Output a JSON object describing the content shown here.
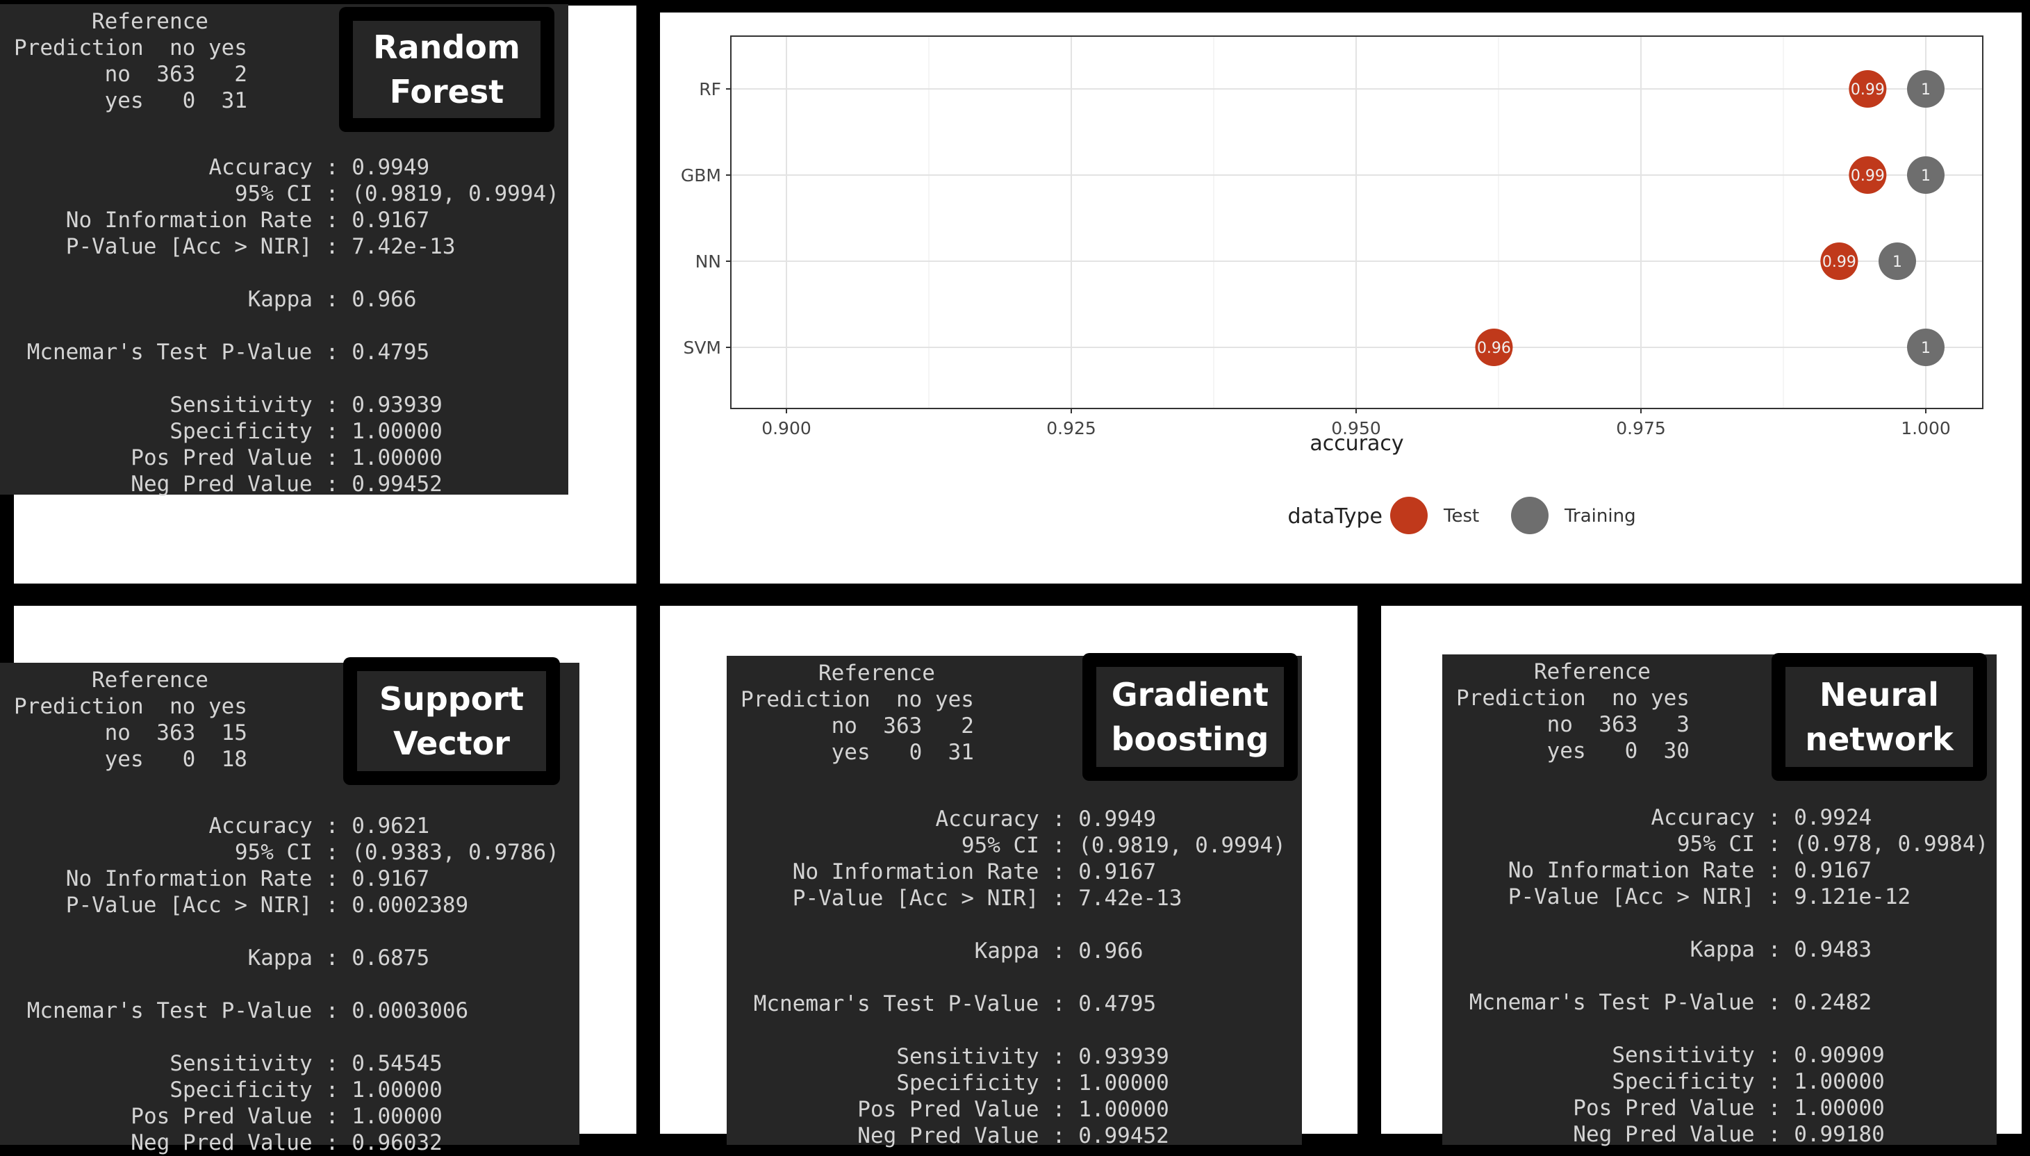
{
  "panels": {
    "rf": {
      "label": "Random\nForest",
      "lines": [
        {
          "l": "      Reference"
        },
        {
          "l": "Prediction  no yes"
        },
        {
          "l": "       no  363   2"
        },
        {
          "l": "       yes   0  31"
        },
        {
          "l": ""
        },
        {
          "l": "Accuracy",
          "v": "0.9949"
        },
        {
          "l": "95% CI",
          "v": "(0.9819, 0.9994)"
        },
        {
          "l": "No Information Rate",
          "v": "0.9167"
        },
        {
          "l": "P-Value [Acc > NIR]",
          "v": "7.42e-13"
        },
        {
          "l": ""
        },
        {
          "l": "Kappa",
          "v": "0.966"
        },
        {
          "l": ""
        },
        {
          "l": "Mcnemar's Test P-Value",
          "v": "0.4795"
        },
        {
          "l": ""
        },
        {
          "l": "Sensitivity",
          "v": "0.93939"
        },
        {
          "l": "Specificity",
          "v": "1.00000"
        },
        {
          "l": "Pos Pred Value",
          "v": "1.00000"
        },
        {
          "l": "Neg Pred Value",
          "v": "0.99452"
        }
      ]
    },
    "svm": {
      "label": "Support\nVector",
      "lines": [
        {
          "l": "      Reference"
        },
        {
          "l": "Prediction  no yes"
        },
        {
          "l": "       no  363  15"
        },
        {
          "l": "       yes   0  18"
        },
        {
          "l": ""
        },
        {
          "l": "Accuracy",
          "v": "0.9621"
        },
        {
          "l": "95% CI",
          "v": "(0.9383, 0.9786)"
        },
        {
          "l": "No Information Rate",
          "v": "0.9167"
        },
        {
          "l": "P-Value [Acc > NIR]",
          "v": "0.0002389"
        },
        {
          "l": ""
        },
        {
          "l": "Kappa",
          "v": "0.6875"
        },
        {
          "l": ""
        },
        {
          "l": "Mcnemar's Test P-Value",
          "v": "0.0003006"
        },
        {
          "l": ""
        },
        {
          "l": "Sensitivity",
          "v": "0.54545"
        },
        {
          "l": "Specificity",
          "v": "1.00000"
        },
        {
          "l": "Pos Pred Value",
          "v": "1.00000"
        },
        {
          "l": "Neg Pred Value",
          "v": "0.96032"
        }
      ]
    },
    "gbm": {
      "label": "Gradient\nboosting",
      "lines": [
        {
          "l": "      Reference"
        },
        {
          "l": "Prediction  no yes"
        },
        {
          "l": "       no  363   2"
        },
        {
          "l": "       yes   0  31"
        },
        {
          "l": ""
        },
        {
          "l": "Accuracy",
          "v": "0.9949"
        },
        {
          "l": "95% CI",
          "v": "(0.9819, 0.9994)"
        },
        {
          "l": "No Information Rate",
          "v": "0.9167"
        },
        {
          "l": "P-Value [Acc > NIR]",
          "v": "7.42e-13"
        },
        {
          "l": ""
        },
        {
          "l": "Kappa",
          "v": "0.966"
        },
        {
          "l": ""
        },
        {
          "l": "Mcnemar's Test P-Value",
          "v": "0.4795"
        },
        {
          "l": ""
        },
        {
          "l": "Sensitivity",
          "v": "0.93939"
        },
        {
          "l": "Specificity",
          "v": "1.00000"
        },
        {
          "l": "Pos Pred Value",
          "v": "1.00000"
        },
        {
          "l": "Neg Pred Value",
          "v": "0.99452"
        }
      ]
    },
    "nn": {
      "label": "Neural\nnetwork",
      "lines": [
        {
          "l": "      Reference"
        },
        {
          "l": "Prediction  no yes"
        },
        {
          "l": "       no  363   3"
        },
        {
          "l": "       yes   0  30"
        },
        {
          "l": ""
        },
        {
          "l": "Accuracy",
          "v": "0.9924"
        },
        {
          "l": "95% CI",
          "v": "(0.978, 0.9984)"
        },
        {
          "l": "No Information Rate",
          "v": "0.9167"
        },
        {
          "l": "P-Value [Acc > NIR]",
          "v": "9.121e-12"
        },
        {
          "l": ""
        },
        {
          "l": "Kappa",
          "v": "0.9483"
        },
        {
          "l": ""
        },
        {
          "l": "Mcnemar's Test P-Value",
          "v": "0.2482"
        },
        {
          "l": ""
        },
        {
          "l": "Sensitivity",
          "v": "0.90909"
        },
        {
          "l": "Specificity",
          "v": "1.00000"
        },
        {
          "l": "Pos Pred Value",
          "v": "1.00000"
        },
        {
          "l": "Neg Pred Value",
          "v": "0.99180"
        }
      ]
    }
  },
  "chart_data": {
    "type": "scatter",
    "categories": [
      "RF",
      "GBM",
      "NN",
      "SVM"
    ],
    "xlabel": "accuracy",
    "xlim": [
      0.9,
      1.0
    ],
    "xticks": [
      "0.900",
      "0.925",
      "0.950",
      "0.975",
      "1.000"
    ],
    "xtick_values": [
      0.9,
      0.925,
      0.95,
      0.975,
      1.0
    ],
    "grid": true,
    "legend": {
      "title": "dataType",
      "placement": "bottom"
    },
    "series": [
      {
        "name": "Test",
        "color": "#c0391b",
        "values": [
          0.9949,
          0.9949,
          0.9924,
          0.9621
        ],
        "labels": [
          "0.99",
          "0.99",
          "0.99",
          "0.96"
        ]
      },
      {
        "name": "Training",
        "color": "#6e6e6e",
        "values": [
          1.0,
          1.0,
          0.9975,
          1.0
        ],
        "labels": [
          "1",
          "1",
          "1",
          "1"
        ]
      }
    ]
  }
}
